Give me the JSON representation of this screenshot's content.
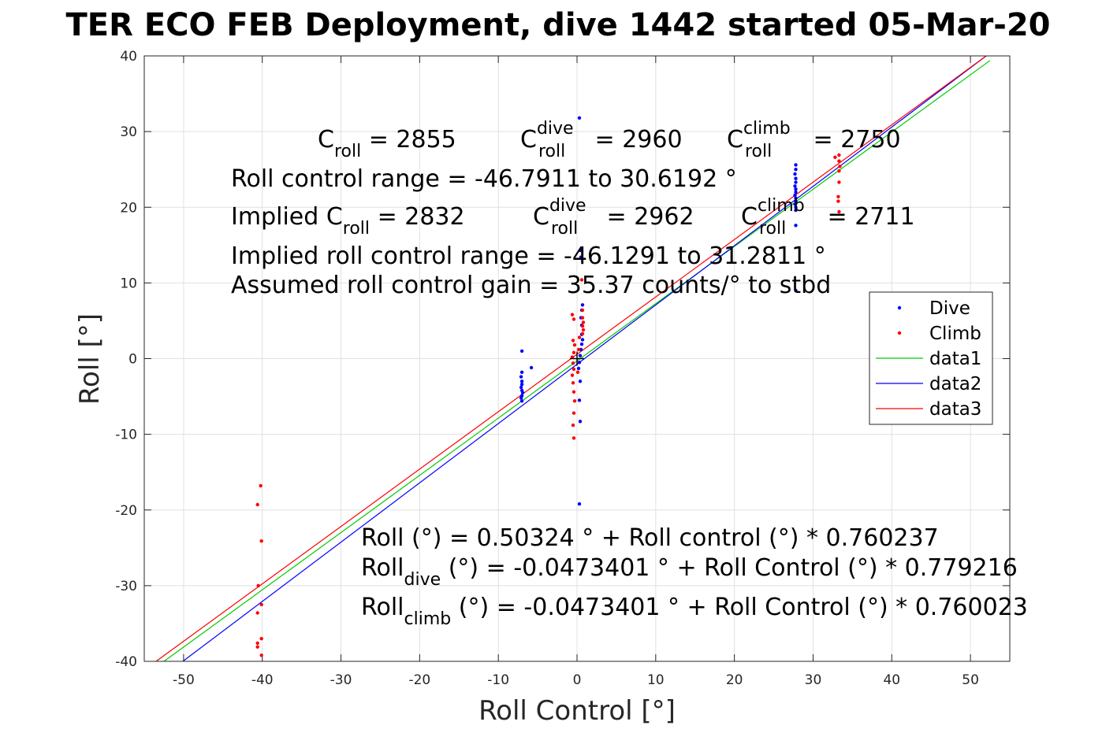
{
  "chart_data": {
    "type": "scatter",
    "title": "TER ECO FEB Deployment, dive 1442 started 05-Mar-20",
    "xlabel": "Roll Control [°]",
    "ylabel": "Roll [°]",
    "xlim": [
      -55,
      55
    ],
    "ylim": [
      -40,
      40
    ],
    "xticks": [
      -50,
      -40,
      -30,
      -20,
      -10,
      0,
      10,
      20,
      30,
      40,
      50
    ],
    "yticks": [
      -40,
      -30,
      -20,
      -10,
      0,
      10,
      20,
      30,
      40
    ],
    "grid": true,
    "legend_position": "right",
    "colors": {
      "dive": "#0000ff",
      "climb": "#ff0000",
      "data1": "#00cc00",
      "data2": "#0000ff",
      "data3": "#ff0000",
      "zero_marker": "#000000"
    },
    "series": [
      {
        "name": "Dive",
        "kind": "points",
        "color": "#0000ff",
        "points": [
          [
            0.3,
            31.8
          ],
          [
            0.4,
            14.3
          ],
          [
            0.5,
            13.4
          ],
          [
            0.7,
            7.1
          ],
          [
            0.6,
            6.4
          ],
          [
            0.5,
            5.4
          ],
          [
            0.6,
            4.4
          ],
          [
            0.6,
            3.2
          ],
          [
            0.7,
            2.5
          ],
          [
            0.6,
            1.9
          ],
          [
            0.5,
            1.2
          ],
          [
            0.4,
            0.4
          ],
          [
            0.3,
            -0.5
          ],
          [
            0.2,
            -1.3
          ],
          [
            0.4,
            -3.0
          ],
          [
            0.3,
            -5.5
          ],
          [
            0.4,
            -8.3
          ],
          [
            0.3,
            -19.2
          ],
          [
            -7.0,
            1.0
          ],
          [
            -7.0,
            -1.8
          ],
          [
            -7.1,
            -2.4
          ],
          [
            -7.0,
            -3.0
          ],
          [
            -7.0,
            -3.4
          ],
          [
            -7.1,
            -3.8
          ],
          [
            -7.0,
            -4.2
          ],
          [
            -6.9,
            -4.5
          ],
          [
            -7.0,
            -4.9
          ],
          [
            -7.1,
            -5.2
          ],
          [
            -7.0,
            -5.6
          ],
          [
            -5.8,
            -1.2
          ],
          [
            27.8,
            25.6
          ],
          [
            27.8,
            25.0
          ],
          [
            27.7,
            24.4
          ],
          [
            27.8,
            23.8
          ],
          [
            27.8,
            23.3
          ],
          [
            27.7,
            22.8
          ],
          [
            27.8,
            22.4
          ],
          [
            27.8,
            22.0
          ],
          [
            27.7,
            21.6
          ],
          [
            27.8,
            21.2
          ],
          [
            27.8,
            20.8
          ],
          [
            27.7,
            20.4
          ],
          [
            27.8,
            20.0
          ],
          [
            27.8,
            19.6
          ],
          [
            27.8,
            17.6
          ],
          [
            27.8,
            9.0
          ]
        ]
      },
      {
        "name": "Climb",
        "kind": "points",
        "color": "#ff0000",
        "points": [
          [
            0.6,
            10.4
          ],
          [
            0.7,
            6.4
          ],
          [
            -0.6,
            5.8
          ],
          [
            -0.4,
            5.2
          ],
          [
            0.7,
            5.4
          ],
          [
            0.8,
            4.8
          ],
          [
            0.7,
            4.3
          ],
          [
            0.8,
            3.8
          ],
          [
            0.7,
            3.3
          ],
          [
            -0.5,
            2.4
          ],
          [
            -0.3,
            1.8
          ],
          [
            -0.4,
            0.8
          ],
          [
            -0.6,
            0.2
          ],
          [
            -0.5,
            -0.6
          ],
          [
            -0.4,
            -1.4
          ],
          [
            -0.6,
            -2.2
          ],
          [
            -0.5,
            -3.2
          ],
          [
            -0.4,
            -4.4
          ],
          [
            -0.3,
            -5.6
          ],
          [
            -0.4,
            -7.2
          ],
          [
            -0.5,
            -8.8
          ],
          [
            -0.4,
            -10.5
          ],
          [
            0.2,
            1.2
          ],
          [
            0.3,
            2.8
          ],
          [
            0.1,
            -1.8
          ],
          [
            -40.2,
            -16.8
          ],
          [
            -40.6,
            -19.3
          ],
          [
            -40.1,
            -24.1
          ],
          [
            -40.5,
            -30.0
          ],
          [
            -40.1,
            -32.5
          ],
          [
            -40.6,
            -33.6
          ],
          [
            -40.1,
            -37.0
          ],
          [
            -40.6,
            -37.6
          ],
          [
            -40.6,
            -38.1
          ],
          [
            -40.1,
            -39.2
          ],
          [
            32.8,
            26.6
          ],
          [
            33.3,
            26.9
          ],
          [
            33.3,
            26.1
          ],
          [
            33.4,
            25.4
          ],
          [
            33.3,
            24.8
          ],
          [
            33.3,
            23.3
          ],
          [
            33.2,
            21.4
          ],
          [
            33.2,
            20.8
          ],
          [
            33.3,
            19.4
          ]
        ]
      },
      {
        "name": "data1",
        "kind": "line",
        "color": "#00cc00",
        "points": [
          [
            -52.5,
            -40.0
          ],
          [
            52.5,
            39.4
          ]
        ]
      },
      {
        "name": "data2",
        "kind": "line",
        "color": "#0000ff",
        "points": [
          [
            -50.1,
            -40.0
          ],
          [
            52.0,
            40.0
          ]
        ]
      },
      {
        "name": "data3",
        "kind": "line",
        "color": "#ff0000",
        "points": [
          [
            -53.5,
            -40.0
          ],
          [
            52.0,
            40.0
          ]
        ]
      }
    ],
    "zero_marker": [
      0,
      0
    ],
    "annotations": {
      "l1": {
        "c1": "C",
        "s1": "roll",
        "t1": " = 2855",
        "c2": "C",
        "sup2": "dive",
        "sub2": "roll",
        "t2": " = 2960",
        "c3": "C",
        "sup3": "climb",
        "sub3": "roll",
        "t3": " = 2750"
      },
      "l2": "Roll control range = -46.7911 to 30.6192 °",
      "l3": {
        "pre": "Implied C",
        "s1": "roll",
        "t1": " = 2832",
        "c2": "C",
        "sup2": "dive",
        "sub2": "roll",
        "t2": " = 2962",
        "c3": "C",
        "sup3": "climb",
        "sub3": "roll",
        "t3": " = 2711"
      },
      "l4": "Implied roll control range = -46.1291 to 31.2811 °",
      "l5": "Assumed roll control gain = 35.37 counts/° to stbd",
      "e1": "Roll (°) = 0.50324 ° + Roll control (°) * 0.760237",
      "e2": {
        "pre": "Roll",
        "sub": "dive",
        "post": " (°) = -0.0473401 ° + Roll Control (°) * 0.779216"
      },
      "e3": {
        "pre": "Roll",
        "sub": "climb",
        "post": " (°) = -0.0473401 ° + Roll Control (°) * 0.760023"
      }
    }
  }
}
